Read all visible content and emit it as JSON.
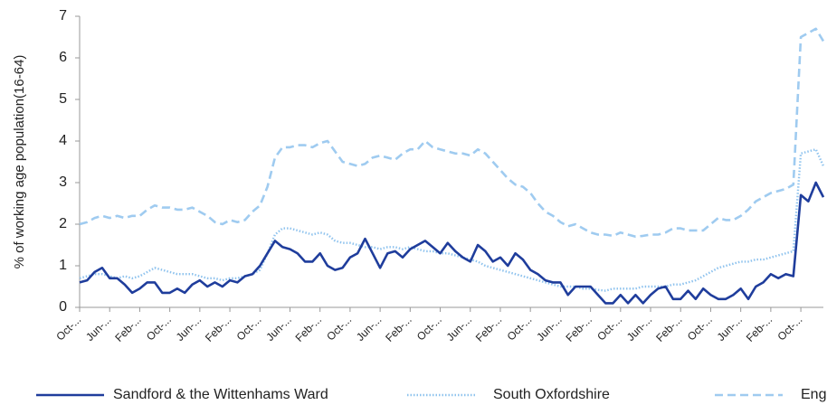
{
  "chart_data": {
    "type": "line",
    "y_label": "% of working age population(16-64)",
    "categories": [
      "Oct-...",
      null,
      null,
      null,
      "Jun-...",
      null,
      null,
      null,
      "Feb-...",
      null,
      null,
      null,
      "Oct-...",
      null,
      null,
      null,
      "Jun-...",
      null,
      null,
      null,
      "Feb-...",
      null,
      null,
      null,
      "Oct-...",
      null,
      null,
      null,
      "Jun-...",
      null,
      null,
      null,
      "Feb-...",
      null,
      null,
      null,
      "Oct-...",
      null,
      null,
      null,
      "Jun-...",
      null,
      null,
      null,
      "Feb-...",
      null,
      null,
      null,
      "Oct-...",
      null,
      null,
      null,
      "Jun-...",
      null,
      null,
      null,
      "Feb-...",
      null,
      null,
      null,
      "Oct-...",
      null,
      null,
      null,
      "Jun-...",
      null,
      null,
      null,
      "Feb-...",
      null,
      null,
      null,
      "Oct-...",
      null,
      null,
      null,
      "Jun-...",
      null,
      null,
      null,
      "Feb-...",
      null,
      null,
      null,
      "Oct-...",
      null,
      null,
      null,
      "Jun-...",
      null,
      null,
      null,
      "Feb-...",
      null,
      null,
      null,
      "Oct-...",
      null,
      null,
      null
    ],
    "series": [
      {
        "name": "Sandford & the Wittenhams Ward",
        "color": "#1f3d9c",
        "style": "solid",
        "values": [
          0.6,
          0.65,
          0.85,
          0.95,
          0.7,
          0.7,
          0.55,
          0.35,
          0.45,
          0.6,
          0.6,
          0.35,
          0.35,
          0.45,
          0.35,
          0.55,
          0.65,
          0.5,
          0.6,
          0.5,
          0.65,
          0.6,
          0.75,
          0.8,
          1.0,
          1.3,
          1.6,
          1.45,
          1.4,
          1.3,
          1.1,
          1.1,
          1.3,
          1.0,
          0.9,
          0.95,
          1.2,
          1.3,
          1.65,
          1.3,
          0.95,
          1.3,
          1.35,
          1.2,
          1.4,
          1.5,
          1.6,
          1.45,
          1.3,
          1.55,
          1.35,
          1.2,
          1.1,
          1.5,
          1.35,
          1.1,
          1.2,
          1.0,
          1.3,
          1.15,
          0.9,
          0.8,
          0.65,
          0.6,
          0.6,
          0.3,
          0.5,
          0.5,
          0.5,
          0.3,
          0.1,
          0.1,
          0.3,
          0.1,
          0.3,
          0.1,
          0.3,
          0.45,
          0.5,
          0.2,
          0.2,
          0.4,
          0.2,
          0.45,
          0.3,
          0.2,
          0.2,
          0.3,
          0.45,
          0.2,
          0.5,
          0.6,
          0.8,
          0.7,
          0.8,
          0.75,
          2.7,
          2.55,
          3.0,
          2.65
        ]
      },
      {
        "name": "South Oxfordshire",
        "color": "#8fc3ee",
        "style": "dotted",
        "values": [
          0.7,
          0.75,
          0.8,
          0.8,
          0.75,
          0.7,
          0.75,
          0.7,
          0.75,
          0.85,
          0.95,
          0.9,
          0.85,
          0.8,
          0.8,
          0.8,
          0.75,
          0.7,
          0.7,
          0.65,
          0.7,
          0.7,
          0.75,
          0.8,
          0.9,
          1.3,
          1.75,
          1.9,
          1.9,
          1.85,
          1.8,
          1.75,
          1.8,
          1.75,
          1.6,
          1.55,
          1.55,
          1.5,
          1.45,
          1.45,
          1.4,
          1.45,
          1.45,
          1.4,
          1.45,
          1.4,
          1.35,
          1.35,
          1.3,
          1.3,
          1.25,
          1.2,
          1.15,
          1.1,
          1.0,
          0.95,
          0.9,
          0.85,
          0.8,
          0.75,
          0.7,
          0.65,
          0.6,
          0.55,
          0.5,
          0.5,
          0.5,
          0.45,
          0.45,
          0.42,
          0.4,
          0.45,
          0.45,
          0.45,
          0.45,
          0.5,
          0.5,
          0.5,
          0.5,
          0.55,
          0.55,
          0.6,
          0.65,
          0.75,
          0.85,
          0.95,
          1.0,
          1.05,
          1.1,
          1.1,
          1.15,
          1.15,
          1.2,
          1.25,
          1.3,
          1.35,
          3.7,
          3.75,
          3.8,
          3.4
        ]
      },
      {
        "name": "England",
        "color": "#9fcbf0",
        "style": "dashed",
        "values": [
          2.0,
          2.05,
          2.15,
          2.2,
          2.15,
          2.2,
          2.15,
          2.2,
          2.2,
          2.35,
          2.45,
          2.4,
          2.4,
          2.35,
          2.35,
          2.4,
          2.3,
          2.2,
          2.05,
          2.0,
          2.1,
          2.05,
          2.1,
          2.3,
          2.45,
          2.9,
          3.6,
          3.85,
          3.85,
          3.9,
          3.9,
          3.85,
          3.95,
          4.0,
          3.75,
          3.5,
          3.45,
          3.4,
          3.45,
          3.6,
          3.65,
          3.6,
          3.55,
          3.7,
          3.8,
          3.8,
          4.0,
          3.85,
          3.8,
          3.75,
          3.7,
          3.7,
          3.65,
          3.8,
          3.7,
          3.5,
          3.3,
          3.1,
          2.95,
          2.9,
          2.75,
          2.5,
          2.3,
          2.2,
          2.05,
          1.95,
          2.0,
          1.9,
          1.8,
          1.75,
          1.75,
          1.72,
          1.8,
          1.75,
          1.7,
          1.72,
          1.75,
          1.75,
          1.8,
          1.9,
          1.9,
          1.85,
          1.85,
          1.85,
          2.0,
          2.15,
          2.1,
          2.1,
          2.2,
          2.35,
          2.55,
          2.65,
          2.75,
          2.8,
          2.85,
          2.95,
          6.5,
          6.6,
          6.7,
          6.4
        ]
      }
    ],
    "ylim": [
      0,
      7
    ],
    "yticks": [
      0,
      1,
      2,
      3,
      4,
      5,
      6,
      7
    ],
    "grid": false,
    "legend": "bottom"
  }
}
